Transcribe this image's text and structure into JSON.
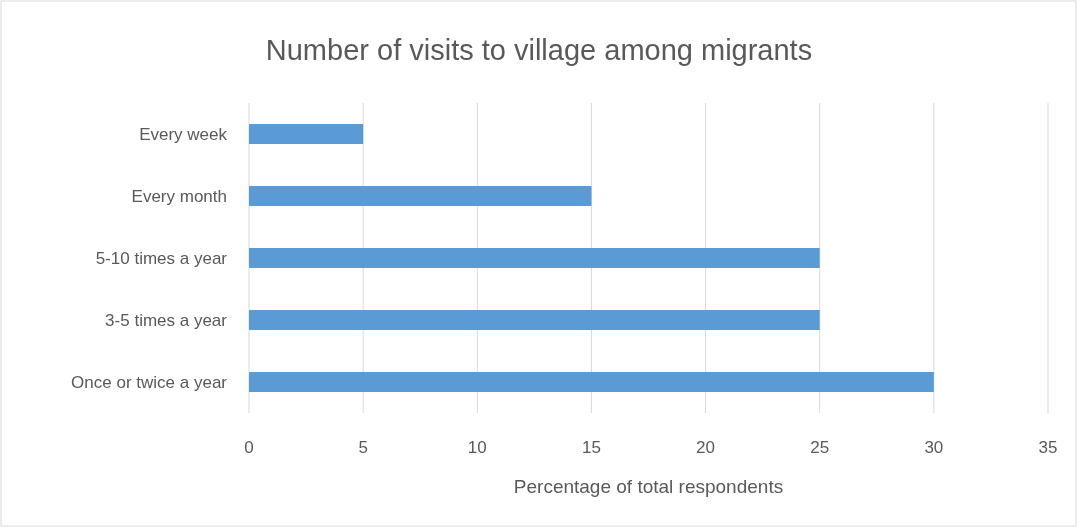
{
  "chart_data": {
    "type": "bar",
    "orientation": "horizontal",
    "title": "Number of visits to village among migrants",
    "xlabel": "Percentage of total respondents",
    "categories": [
      "Every week",
      "Every month",
      "5-10 times a year",
      "3-5 times a year",
      "Once or twice a year"
    ],
    "values": [
      5,
      15,
      25,
      25,
      30
    ],
    "color": "#5b9bd5",
    "xlim": [
      0,
      35
    ],
    "xticks": [
      0,
      5,
      10,
      15,
      20,
      25,
      30,
      35
    ],
    "grid": "x"
  }
}
